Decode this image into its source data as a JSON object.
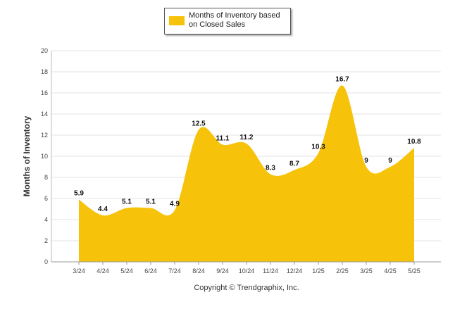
{
  "chart_data": {
    "type": "area",
    "categories": [
      "3/24",
      "4/24",
      "5/24",
      "6/24",
      "7/24",
      "8/24",
      "9/24",
      "10/24",
      "11/24",
      "12/24",
      "1/25",
      "2/25",
      "3/25",
      "4/25",
      "5/25"
    ],
    "series": [
      {
        "name": "Months of Inventory based on Closed Sales",
        "values": [
          5.9,
          4.4,
          5.1,
          5.1,
          4.9,
          12.5,
          11.1,
          11.2,
          8.3,
          8.7,
          10.3,
          16.7,
          9,
          9,
          10.8
        ],
        "labels": [
          "5.9",
          "4.4",
          "5.1",
          "5.1",
          "4.9",
          "12.5",
          "11.1",
          "11.2",
          "8.3",
          "8.7",
          "10.3",
          "16.7",
          "9",
          "9",
          "10.8"
        ],
        "color": "#f7c20a"
      }
    ],
    "ylabel": "Months of Inventory",
    "ylim": [
      0,
      20
    ],
    "yticks": [
      0,
      2,
      4,
      6,
      8,
      10,
      12,
      14,
      16,
      18,
      20
    ],
    "grid": true,
    "legend": "top-center"
  },
  "legend": {
    "label": "Months of Inventory based on Closed Sales"
  },
  "footer": {
    "copyright": "Copyright © Trendgraphix, Inc."
  }
}
